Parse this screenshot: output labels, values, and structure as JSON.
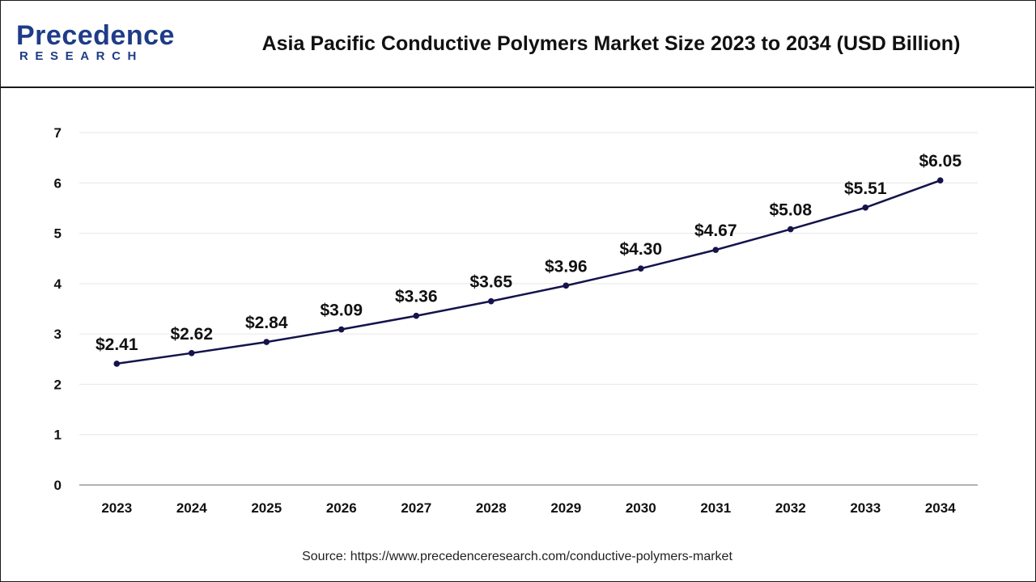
{
  "header": {
    "logo_word": "Precedence",
    "logo_sub": "RESEARCH"
  },
  "colors": {
    "line": "#14134b",
    "grid": "#e6e6e6",
    "axis": "#999999",
    "logo": "#1f3c88",
    "text": "#111111"
  },
  "chart_data": {
    "type": "line",
    "title": "Asia Pacific Conductive Polymers Market Size 2023 to 2034 (USD Billion)",
    "xlabel": "",
    "ylabel": "",
    "categories": [
      "2023",
      "2024",
      "2025",
      "2026",
      "2027",
      "2028",
      "2029",
      "2030",
      "2031",
      "2032",
      "2033",
      "2034"
    ],
    "series": [
      {
        "values": [
          2.41,
          2.62,
          2.84,
          3.09,
          3.36,
          3.65,
          3.96,
          4.3,
          4.67,
          5.08,
          5.51,
          6.05
        ],
        "labels": [
          "$2.41",
          "$2.62",
          "$2.84",
          "$3.09",
          "$3.36",
          "$3.65",
          "$3.96",
          "$4.30",
          "$4.67",
          "$5.08",
          "$5.51",
          "$6.05"
        ]
      }
    ],
    "ylim": [
      0,
      7
    ],
    "yticks": [
      "0",
      "1",
      "2",
      "3",
      "4",
      "5",
      "6",
      "7"
    ],
    "grid": true,
    "legend": "none"
  },
  "source": "Source: https://www.precedenceresearch.com/conductive-polymers-market"
}
